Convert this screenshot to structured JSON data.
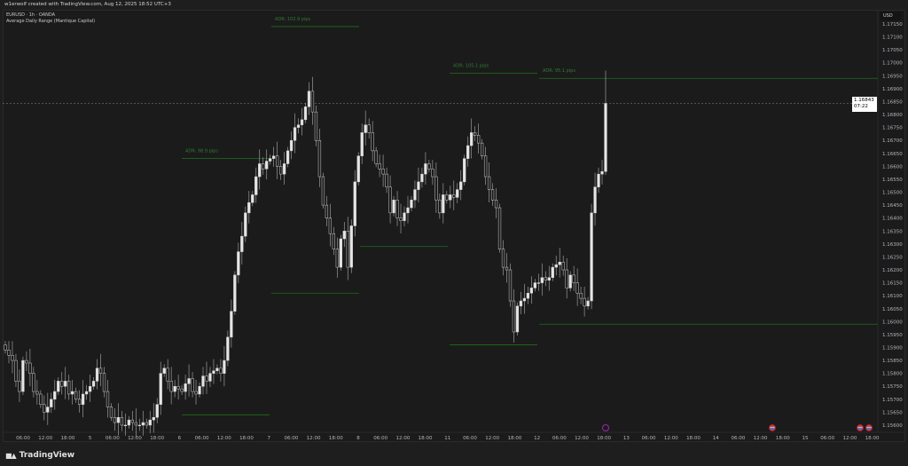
{
  "header": {
    "credit": "w1erwolf created with TradingView.com, Aug 12, 2025 18:52 UTC+3"
  },
  "legend": {
    "symbol": "EURUSD · 1h · OANDA",
    "indicator": "Average Daily Range (Mantique Capital)"
  },
  "price_axis": {
    "currency": "USD",
    "labels": [
      "1.17150",
      "1.17100",
      "1.17050",
      "1.17000",
      "1.16950",
      "1.16900",
      "1.16850",
      "1.16800",
      "1.16750",
      "1.16700",
      "1.16650",
      "1.16600",
      "1.16550",
      "1.16500",
      "1.16450",
      "1.16400",
      "1.16350",
      "1.16300",
      "1.16250",
      "1.16200",
      "1.16150",
      "1.16100",
      "1.16050",
      "1.16000",
      "1.15950",
      "1.15900",
      "1.15850",
      "1.15800",
      "1.15750",
      "1.15700",
      "1.15650",
      "1.15600"
    ]
  },
  "time_axis": {
    "labels": [
      "06:00",
      "12:00",
      "18:00",
      "5",
      "06:00",
      "12:00",
      "18:00",
      "6",
      "06:00",
      "12:00",
      "18:00",
      "7",
      "06:00",
      "12:00",
      "18:00",
      "8",
      "06:00",
      "12:00",
      "18:00",
      "11",
      "06:00",
      "12:00",
      "18:00",
      "12",
      "06:00",
      "12:00",
      "18:00",
      "13",
      "06:00",
      "12:00",
      "18:00",
      "14",
      "06:00",
      "12:00",
      "18:00",
      "15",
      "06:00",
      "12:00",
      "18:00"
    ]
  },
  "current_price": {
    "value": "1.16843",
    "countdown": "07:22"
  },
  "colors": {
    "bull": "#e6e6e6",
    "bear": "#1b1b1b",
    "wick": "#9a9a9a",
    "adr": "#1f6e1f",
    "adr_text": "#2e7d32",
    "accent_purple": "#9c27b0"
  },
  "footer": {
    "brand": "TradingView"
  },
  "events": [
    {
      "icon": "purple-event-icon"
    },
    {
      "icon": "us-flag-icon"
    },
    {
      "icon": "us-flag-icon"
    },
    {
      "icon": "us-flag-icon"
    }
  ],
  "chart_data": {
    "type": "candlestick",
    "symbol": "EURUSD",
    "timeframe": "1h",
    "ylim": [
      1.1556,
      1.1718
    ],
    "closes": [
      1.1589,
      1.1587,
      1.1585,
      1.1577,
      1.1573,
      1.1585,
      1.1584,
      1.158,
      1.1573,
      1.1572,
      1.1568,
      1.1565,
      1.1567,
      1.157,
      1.1573,
      1.1577,
      1.1575,
      1.1577,
      1.1572,
      1.1573,
      1.157,
      1.1568,
      1.1572,
      1.1573,
      1.1575,
      1.1577,
      1.1582,
      1.158,
      1.1573,
      1.1567,
      1.1563,
      1.1561,
      1.1563,
      1.156,
      1.156,
      1.1562,
      1.1561,
      1.156,
      1.156,
      1.1561,
      1.156,
      1.1562,
      1.1563,
      1.1568,
      1.158,
      1.1582,
      1.1577,
      1.1573,
      1.1575,
      1.1574,
      1.1573,
      1.1576,
      1.1578,
      1.1573,
      1.1572,
      1.1575,
      1.1579,
      1.1577,
      1.158,
      1.1581,
      1.1582,
      1.158,
      1.1585,
      1.1594,
      1.1604,
      1.1618,
      1.1627,
      1.1633,
      1.1642,
      1.1646,
      1.1649,
      1.1656,
      1.1661,
      1.1659,
      1.1662,
      1.1663,
      1.1664,
      1.166,
      1.1657,
      1.1661,
      1.1666,
      1.167,
      1.1675,
      1.1676,
      1.1678,
      1.1683,
      1.1689,
      1.1681,
      1.167,
      1.1656,
      1.1645,
      1.164,
      1.1634,
      1.1628,
      1.1621,
      1.1632,
      1.1635,
      1.1621,
      1.1637,
      1.1654,
      1.1664,
      1.1673,
      1.1676,
      1.1673,
      1.1666,
      1.1661,
      1.1659,
      1.1657,
      1.1652,
      1.1642,
      1.1647,
      1.164,
      1.1639,
      1.1642,
      1.1644,
      1.1647,
      1.1651,
      1.1654,
      1.1657,
      1.1661,
      1.1659,
      1.1656,
      1.1647,
      1.1642,
      1.1649,
      1.1647,
      1.1649,
      1.1648,
      1.1651,
      1.1654,
      1.1663,
      1.1668,
      1.1673,
      1.1672,
      1.1669,
      1.1664,
      1.1656,
      1.1651,
      1.1647,
      1.1644,
      1.1628,
      1.1621,
      1.162,
      1.1608,
      1.1596,
      1.1606,
      1.1608,
      1.1609,
      1.1611,
      1.1613,
      1.1615,
      1.1615,
      1.1617,
      1.1616,
      1.1617,
      1.1621,
      1.1622,
      1.1623,
      1.162,
      1.1613,
      1.1618,
      1.1615,
      1.1611,
      1.1609,
      1.1606,
      1.1608,
      1.1642,
      1.1652,
      1.1657,
      1.1658,
      1.16843
    ],
    "last_high": 1.1697,
    "adr_levels": [
      {
        "day": "6",
        "label": "ADR: 98.9 pips",
        "high": 1.1663,
        "low": 1.1564
      },
      {
        "day": "7",
        "label": "ADR: 102.9 pips",
        "high": 1.1714,
        "low": 1.1611
      },
      {
        "day": "8",
        "label": "",
        "high": null,
        "low": 1.1629
      },
      {
        "day": "11",
        "label": "ADR: 105.1 pips",
        "high": 1.1696,
        "low": 1.1591
      },
      {
        "day": "12",
        "label": "ADR: 95.1 pips",
        "high": 1.1694,
        "low": 1.1599
      }
    ]
  }
}
